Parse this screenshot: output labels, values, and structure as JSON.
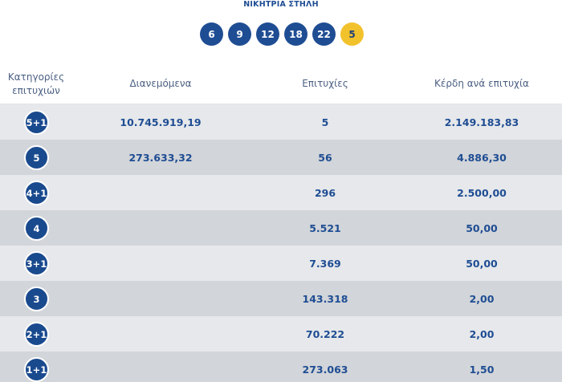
{
  "header": {
    "title": "ΝΙΚΗΤΡΙΑ ΣΤΗΛΗ"
  },
  "winning_numbers": [
    "6",
    "9",
    "12",
    "18",
    "22"
  ],
  "joker_number": "5",
  "colors": {
    "ball": "#1f4d93",
    "joker": "#f2c22d",
    "row_light": "#e6e8eb",
    "row_dark": "#d2d5d9"
  },
  "table": {
    "headers": {
      "category": "Κατηγορίες επιτυχιών",
      "distributed": "Διανεμόμενα",
      "winners": "Επιτυχίες",
      "prize": "Κέρδη ανά επιτυχία"
    },
    "rows": [
      {
        "category": "5+1",
        "distributed": "10.745.919,19",
        "winners": "5",
        "prize": "2.149.183,83"
      },
      {
        "category": "5",
        "distributed": "273.633,32",
        "winners": "56",
        "prize": "4.886,30"
      },
      {
        "category": "4+1",
        "distributed": "",
        "winners": "296",
        "prize": "2.500,00"
      },
      {
        "category": "4",
        "distributed": "",
        "winners": "5.521",
        "prize": "50,00"
      },
      {
        "category": "3+1",
        "distributed": "",
        "winners": "7.369",
        "prize": "50,00"
      },
      {
        "category": "3",
        "distributed": "",
        "winners": "143.318",
        "prize": "2,00"
      },
      {
        "category": "2+1",
        "distributed": "",
        "winners": "70.222",
        "prize": "2,00"
      },
      {
        "category": "1+1",
        "distributed": "",
        "winners": "273.063",
        "prize": "1,50"
      }
    ]
  }
}
